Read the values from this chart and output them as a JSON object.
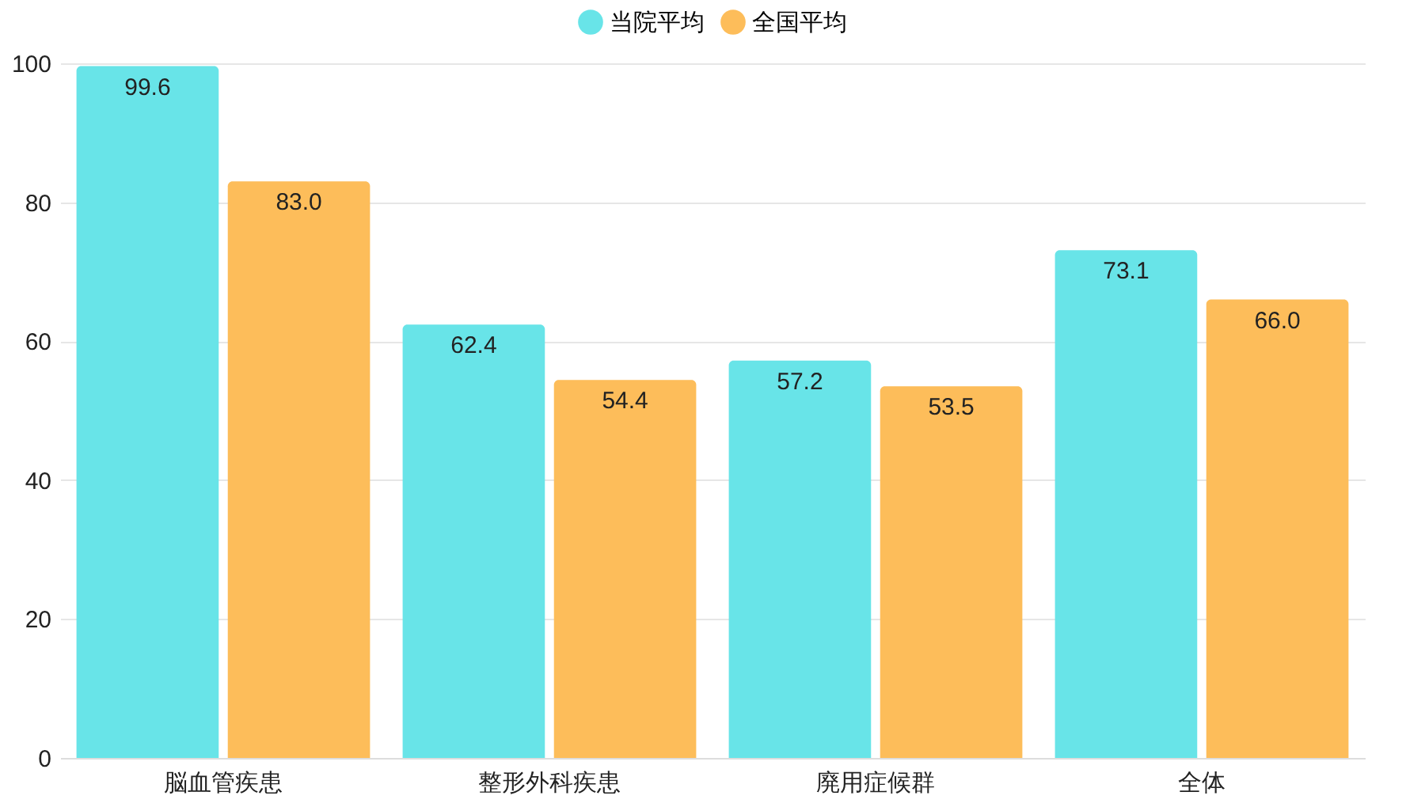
{
  "chart_data": {
    "type": "bar",
    "categories": [
      "脳血管疾患",
      "整形外科疾患",
      "廃用症候群",
      "全体"
    ],
    "series": [
      {
        "name": "当院平均",
        "color": "#68e4e8",
        "values": [
          99.6,
          62.4,
          57.2,
          73.1
        ],
        "value_labels": [
          "99.6",
          "62.4",
          "57.2",
          "73.1"
        ]
      },
      {
        "name": "全国平均",
        "color": "#fdbd5a",
        "values": [
          83.0,
          54.4,
          53.5,
          66.0
        ],
        "value_labels": [
          "83.0",
          "54.4",
          "53.5",
          "66.0"
        ]
      }
    ],
    "ylim": [
      0,
      100
    ],
    "yticks": [
      0,
      20,
      40,
      60,
      80,
      100
    ],
    "grid": "y",
    "legend": "top"
  }
}
